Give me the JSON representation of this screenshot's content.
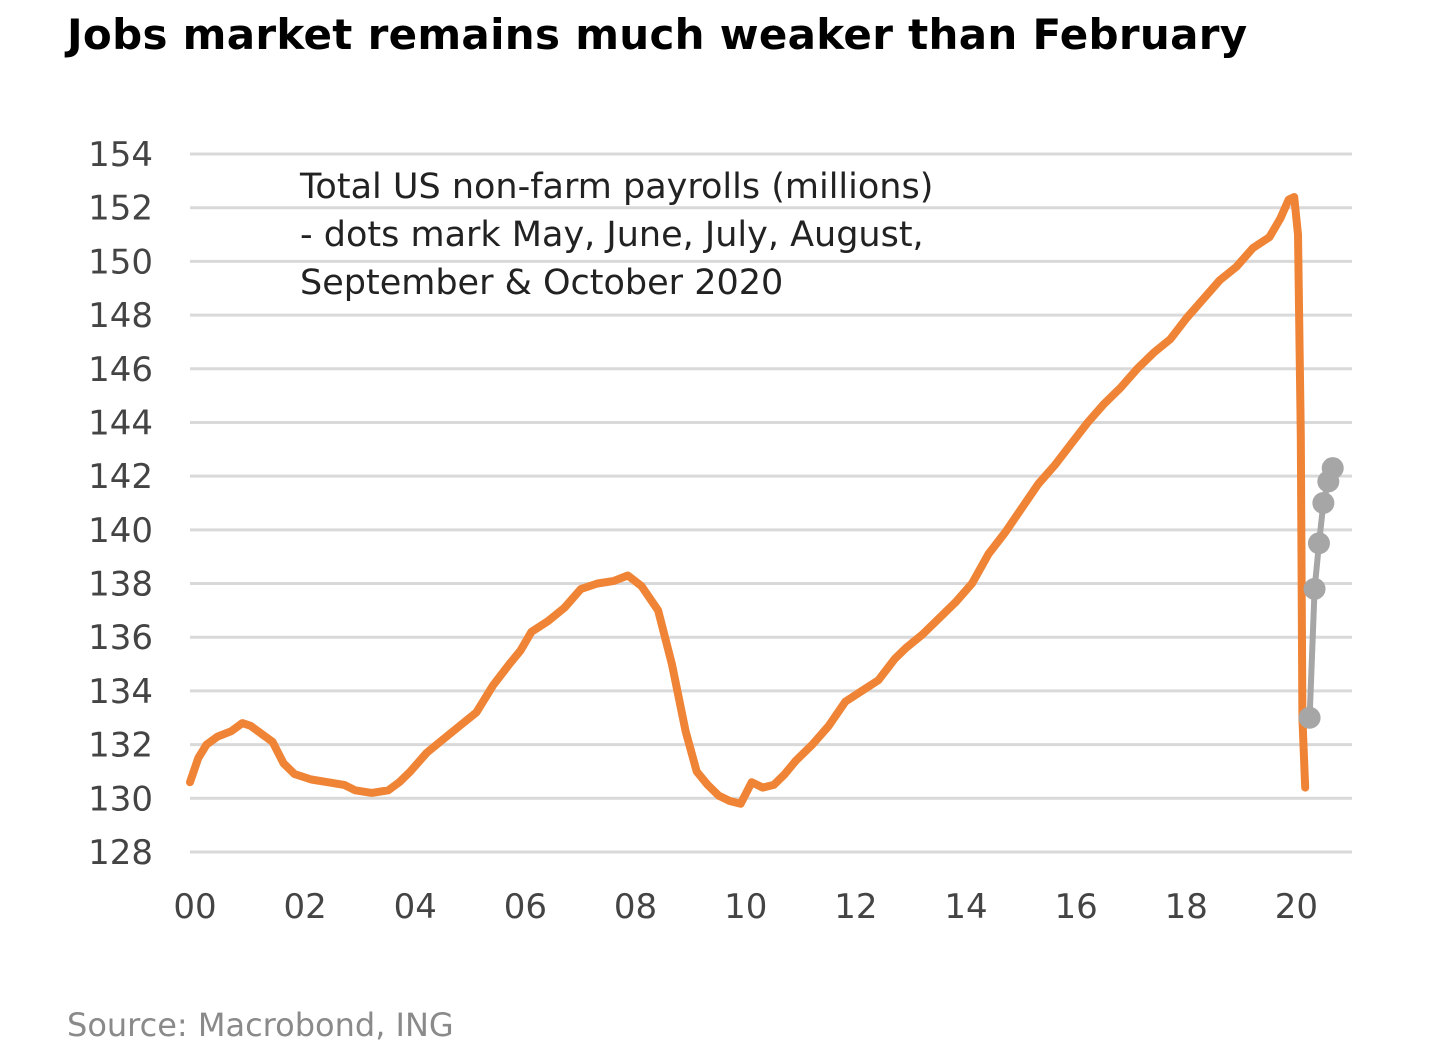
{
  "title": "Jobs market remains much weaker than February",
  "source": "Source: Macrobond, ING",
  "chart_data": {
    "type": "line",
    "title": "Jobs market remains much weaker than February",
    "xlabel": "",
    "ylabel": "",
    "ylim": [
      128,
      154
    ],
    "xlim": [
      2000,
      2021.1
    ],
    "yticks": [
      154,
      152,
      150,
      148,
      146,
      144,
      142,
      140,
      138,
      136,
      134,
      132,
      130,
      128
    ],
    "xticks": [
      {
        "value": 2000,
        "label": "00"
      },
      {
        "value": 2002,
        "label": "02"
      },
      {
        "value": 2004,
        "label": "04"
      },
      {
        "value": 2006,
        "label": "06"
      },
      {
        "value": 2008,
        "label": "08"
      },
      {
        "value": 2010,
        "label": "10"
      },
      {
        "value": 2012,
        "label": "12"
      },
      {
        "value": 2014,
        "label": "14"
      },
      {
        "value": 2016,
        "label": "16"
      },
      {
        "value": 2018,
        "label": "18"
      },
      {
        "value": 2020,
        "label": "20"
      }
    ],
    "grid": true,
    "annotation": [
      "Total US non-farm payrolls (millions)",
      "- dots mark May,  June, July, August,",
      "September & October 2020"
    ],
    "series": [
      {
        "name": "Total US non-farm payrolls",
        "color": "#F08436",
        "x": [
          2000.0,
          2000.15,
          2000.3,
          2000.5,
          2000.75,
          2000.95,
          2001.1,
          2001.3,
          2001.5,
          2001.7,
          2001.9,
          2002.2,
          2002.5,
          2002.8,
          2003.0,
          2003.3,
          2003.6,
          2003.8,
          2004.0,
          2004.3,
          2004.6,
          2004.9,
          2005.2,
          2005.5,
          2005.8,
          2006.0,
          2006.2,
          2006.5,
          2006.8,
          2007.1,
          2007.4,
          2007.7,
          2007.95,
          2008.2,
          2008.5,
          2008.75,
          2009.0,
          2009.2,
          2009.4,
          2009.6,
          2009.8,
          2010.0,
          2010.2,
          2010.4,
          2010.6,
          2010.8,
          2011.0,
          2011.3,
          2011.6,
          2011.9,
          2012.2,
          2012.5,
          2012.8,
          2013.0,
          2013.3,
          2013.6,
          2013.9,
          2014.2,
          2014.5,
          2014.8,
          2015.1,
          2015.4,
          2015.7,
          2016.0,
          2016.3,
          2016.6,
          2016.9,
          2017.2,
          2017.5,
          2017.8,
          2018.1,
          2018.4,
          2018.7,
          2019.0,
          2019.3,
          2019.6,
          2019.8,
          2019.95,
          2020.05,
          2020.12,
          2020.17,
          2020.2,
          2020.25
        ],
        "values": [
          130.6,
          131.5,
          132.0,
          132.3,
          132.5,
          132.8,
          132.7,
          132.4,
          132.1,
          131.3,
          130.9,
          130.7,
          130.6,
          130.5,
          130.3,
          130.2,
          130.3,
          130.6,
          131.0,
          131.7,
          132.2,
          132.7,
          133.2,
          134.2,
          135.0,
          135.5,
          136.2,
          136.6,
          137.1,
          137.8,
          138.0,
          138.1,
          138.3,
          137.9,
          137.0,
          135.0,
          132.5,
          131.0,
          130.5,
          130.1,
          129.9,
          129.8,
          130.6,
          130.4,
          130.5,
          130.9,
          131.4,
          132.0,
          132.7,
          133.6,
          134.0,
          134.4,
          135.2,
          135.6,
          136.1,
          136.7,
          137.3,
          138.0,
          139.1,
          139.9,
          140.8,
          141.7,
          142.4,
          143.2,
          144.0,
          144.7,
          145.3,
          146.0,
          146.6,
          147.1,
          147.9,
          148.6,
          149.3,
          149.8,
          150.5,
          150.9,
          151.6,
          152.3,
          152.4,
          151.0,
          143.5,
          133.0,
          130.4
        ]
      },
      {
        "name": "May–October 2020",
        "color": "#A6A6A6",
        "x": [
          2020.33,
          2020.42,
          2020.5,
          2020.58,
          2020.67,
          2020.75
        ],
        "values": [
          133.0,
          137.8,
          139.5,
          141.0,
          141.8,
          142.3
        ]
      }
    ]
  }
}
